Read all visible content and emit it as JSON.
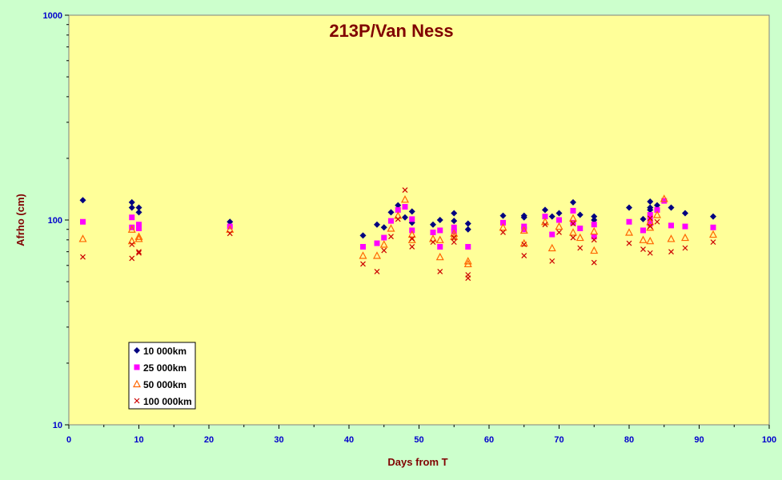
{
  "chart_data": {
    "type": "scatter",
    "title": "213P/Van Ness",
    "xlabel": "Days from T",
    "ylabel": "Afrho (cm)",
    "xlim": [
      0,
      100
    ],
    "ylim": [
      10,
      1000
    ],
    "yscale": "log",
    "x_ticks": [
      "0",
      "10",
      "20",
      "30",
      "40",
      "50",
      "60",
      "70",
      "80",
      "90",
      "100"
    ],
    "y_ticks": [
      "10",
      "100",
      "1000"
    ],
    "grid": false,
    "legend_position": "bottom-left",
    "colors": {
      "plot_bg": "#FFFF99",
      "page_bg": "#CCFFCC",
      "title": "#800000",
      "axis_labels": "#800000",
      "tick_labels": "#0000CC"
    },
    "series": [
      {
        "name": "10 000km",
        "marker": "diamond",
        "color": "#000080",
        "points": [
          [
            2,
            125
          ],
          [
            9,
            122
          ],
          [
            9,
            115
          ],
          [
            10,
            115
          ],
          [
            10,
            109
          ],
          [
            23,
            98
          ],
          [
            42,
            84
          ],
          [
            44,
            95
          ],
          [
            45,
            92
          ],
          [
            46,
            109
          ],
          [
            47,
            118
          ],
          [
            48,
            103
          ],
          [
            49,
            110
          ],
          [
            49,
            97
          ],
          [
            52,
            95
          ],
          [
            53,
            100
          ],
          [
            55,
            108
          ],
          [
            55,
            99
          ],
          [
            57,
            96
          ],
          [
            57,
            90
          ],
          [
            62,
            105
          ],
          [
            65,
            105
          ],
          [
            65,
            103
          ],
          [
            68,
            112
          ],
          [
            69,
            104
          ],
          [
            70,
            108
          ],
          [
            72,
            122
          ],
          [
            73,
            106
          ],
          [
            75,
            104
          ],
          [
            75,
            100
          ],
          [
            80,
            115
          ],
          [
            82,
            101
          ],
          [
            83,
            123
          ],
          [
            83,
            115
          ],
          [
            83,
            112
          ],
          [
            84,
            118
          ],
          [
            86,
            115
          ],
          [
            88,
            108
          ],
          [
            92,
            104
          ]
        ]
      },
      {
        "name": "25 000km",
        "marker": "square",
        "color": "#FF00FF",
        "points": [
          [
            2,
            98
          ],
          [
            9,
            103
          ],
          [
            9,
            92
          ],
          [
            10,
            95
          ],
          [
            10,
            91
          ],
          [
            23,
            93
          ],
          [
            42,
            74
          ],
          [
            44,
            77
          ],
          [
            45,
            82
          ],
          [
            46,
            99
          ],
          [
            47,
            112
          ],
          [
            48,
            116
          ],
          [
            49,
            101
          ],
          [
            49,
            89
          ],
          [
            52,
            87
          ],
          [
            53,
            89
          ],
          [
            53,
            74
          ],
          [
            55,
            92
          ],
          [
            55,
            88
          ],
          [
            57,
            74
          ],
          [
            62,
            97
          ],
          [
            65,
            93
          ],
          [
            65,
            90
          ],
          [
            68,
            104
          ],
          [
            69,
            85
          ],
          [
            70,
            100
          ],
          [
            72,
            111
          ],
          [
            72,
            97
          ],
          [
            73,
            91
          ],
          [
            75,
            95
          ],
          [
            75,
            83
          ],
          [
            80,
            98
          ],
          [
            82,
            89
          ],
          [
            83,
            106
          ],
          [
            83,
            100
          ],
          [
            83,
            96
          ],
          [
            84,
            112
          ],
          [
            85,
            124
          ],
          [
            86,
            94
          ],
          [
            88,
            93
          ],
          [
            92,
            92
          ]
        ]
      },
      {
        "name": "50 000km",
        "marker": "triangle",
        "color": "#FF6600",
        "points": [
          [
            2,
            81
          ],
          [
            9,
            79
          ],
          [
            9,
            90
          ],
          [
            10,
            83
          ],
          [
            10,
            81
          ],
          [
            23,
            90
          ],
          [
            42,
            67
          ],
          [
            44,
            67
          ],
          [
            45,
            76
          ],
          [
            46,
            91
          ],
          [
            47,
            105
          ],
          [
            48,
            126
          ],
          [
            49,
            85
          ],
          [
            49,
            80
          ],
          [
            52,
            81
          ],
          [
            53,
            80
          ],
          [
            53,
            66
          ],
          [
            55,
            86
          ],
          [
            55,
            83
          ],
          [
            57,
            63
          ],
          [
            57,
            61
          ],
          [
            62,
            92
          ],
          [
            65,
            89
          ],
          [
            65,
            77
          ],
          [
            68,
            98
          ],
          [
            69,
            73
          ],
          [
            70,
            93
          ],
          [
            72,
            102
          ],
          [
            72,
            87
          ],
          [
            73,
            82
          ],
          [
            75,
            88
          ],
          [
            75,
            71
          ],
          [
            80,
            87
          ],
          [
            82,
            80
          ],
          [
            83,
            98
          ],
          [
            83,
            92
          ],
          [
            83,
            79
          ],
          [
            84,
            106
          ],
          [
            85,
            127
          ],
          [
            86,
            81
          ],
          [
            88,
            82
          ],
          [
            92,
            85
          ]
        ]
      },
      {
        "name": "100 000km",
        "marker": "x",
        "color": "#CC0000",
        "points": [
          [
            2,
            66
          ],
          [
            9,
            65
          ],
          [
            9,
            76
          ],
          [
            10,
            70
          ],
          [
            10,
            69
          ],
          [
            23,
            86
          ],
          [
            42,
            61
          ],
          [
            44,
            56
          ],
          [
            45,
            71
          ],
          [
            46,
            83
          ],
          [
            47,
            101
          ],
          [
            48,
            140
          ],
          [
            49,
            81
          ],
          [
            49,
            74
          ],
          [
            52,
            78
          ],
          [
            53,
            56
          ],
          [
            55,
            82
          ],
          [
            55,
            78
          ],
          [
            57,
            54
          ],
          [
            57,
            52
          ],
          [
            62,
            87
          ],
          [
            65,
            67
          ],
          [
            65,
            76
          ],
          [
            68,
            95
          ],
          [
            69,
            63
          ],
          [
            70,
            87
          ],
          [
            72,
            96
          ],
          [
            72,
            82
          ],
          [
            73,
            73
          ],
          [
            75,
            80
          ],
          [
            75,
            62
          ],
          [
            80,
            77
          ],
          [
            82,
            72
          ],
          [
            83,
            102
          ],
          [
            83,
            93
          ],
          [
            83,
            69
          ],
          [
            84,
            98
          ],
          [
            86,
            70
          ],
          [
            88,
            73
          ],
          [
            92,
            78
          ]
        ]
      }
    ]
  }
}
